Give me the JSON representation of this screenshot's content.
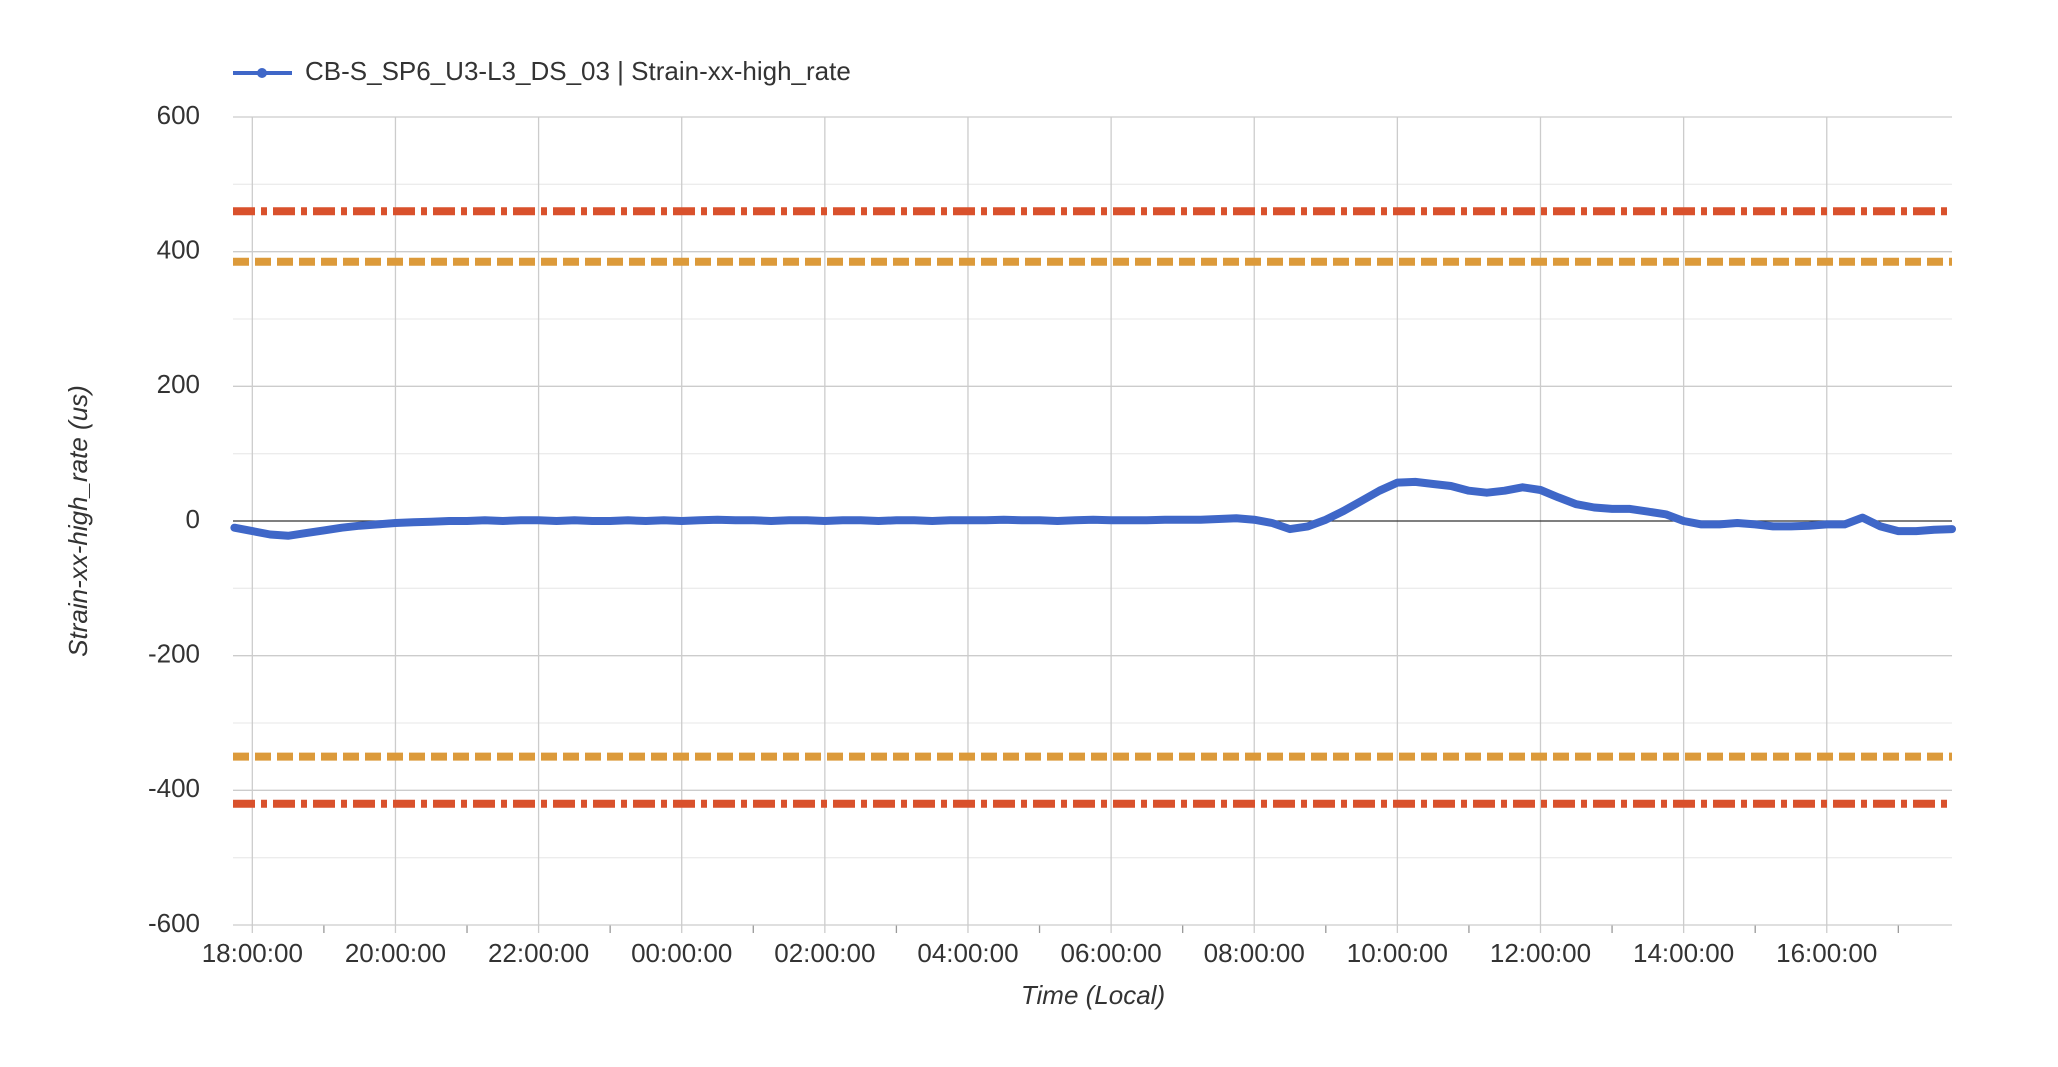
{
  "chart_data": {
    "type": "line",
    "xlabel": "Time (Local)",
    "ylabel": "Strain-xx-high_rate (us)",
    "series": [
      {
        "name": "CB-S_SP6_U3-L3_DS_03 | Strain-xx-high_rate",
        "color": "#3f67c8",
        "x": [
          17.75,
          18,
          18.25,
          18.5,
          18.75,
          19,
          19.25,
          19.5,
          19.75,
          20,
          20.25,
          20.5,
          20.75,
          21,
          21.25,
          21.5,
          21.75,
          22,
          22.25,
          22.5,
          22.75,
          23,
          23.25,
          23.5,
          23.75,
          24,
          24.25,
          24.5,
          24.75,
          25,
          25.25,
          25.5,
          25.75,
          26,
          26.25,
          26.5,
          26.75,
          27,
          27.25,
          27.5,
          27.75,
          28,
          28.25,
          28.5,
          28.75,
          29,
          29.25,
          29.5,
          29.75,
          30,
          30.25,
          30.5,
          30.75,
          31,
          31.25,
          31.5,
          31.75,
          32,
          32.25,
          32.5,
          32.75,
          33,
          33.25,
          33.5,
          33.75,
          34,
          34.25,
          34.5,
          34.75,
          35,
          35.25,
          35.5,
          35.75,
          36,
          36.25,
          36.5,
          36.75,
          37,
          37.25,
          37.5,
          37.75,
          38,
          38.25,
          38.5,
          38.75,
          39,
          39.25,
          39.5,
          39.75,
          40,
          40.25,
          40.5,
          40.75,
          41,
          41.25,
          41.5,
          41.75
        ],
        "values": [
          -10,
          -15,
          -20,
          -22,
          -18,
          -14,
          -10,
          -7,
          -5,
          -3,
          -2,
          -1,
          0,
          0,
          1,
          0,
          1,
          1,
          0,
          1,
          0,
          0,
          1,
          0,
          1,
          0,
          1,
          2,
          1,
          1,
          0,
          1,
          1,
          0,
          1,
          1,
          0,
          1,
          1,
          0,
          1,
          1,
          1,
          2,
          1,
          1,
          0,
          1,
          2,
          1,
          1,
          1,
          2,
          2,
          2,
          3,
          4,
          2,
          -3,
          -12,
          -8,
          2,
          15,
          30,
          45,
          57,
          58,
          55,
          52,
          45,
          42,
          45,
          50,
          46,
          35,
          25,
          20,
          18,
          18,
          14,
          10,
          0,
          -5,
          -5,
          -3,
          -5,
          -8,
          -8,
          -7,
          -5,
          -5,
          5,
          -8,
          -15,
          -15,
          -13,
          -12
        ]
      }
    ],
    "thresholds": [
      {
        "value": 460,
        "color": "#d9512c",
        "dash": "dashdot"
      },
      {
        "value": 385,
        "color": "#dc9a3a",
        "dash": "dashed"
      },
      {
        "value": -350,
        "color": "#dc9a3a",
        "dash": "dashed"
      },
      {
        "value": -420,
        "color": "#d9512c",
        "dash": "dashdot"
      }
    ],
    "xlim": [
      17.73,
      41.75
    ],
    "xticks": [
      {
        "value": 18,
        "label": "18:00:00"
      },
      {
        "value": 20,
        "label": "20:00:00"
      },
      {
        "value": 22,
        "label": "22:00:00"
      },
      {
        "value": 24,
        "label": "00:00:00"
      },
      {
        "value": 26,
        "label": "02:00:00"
      },
      {
        "value": 28,
        "label": "04:00:00"
      },
      {
        "value": 30,
        "label": "06:00:00"
      },
      {
        "value": 32,
        "label": "08:00:00"
      },
      {
        "value": 34,
        "label": "10:00:00"
      },
      {
        "value": 36,
        "label": "12:00:00"
      },
      {
        "value": 38,
        "label": "14:00:00"
      },
      {
        "value": 40,
        "label": "16:00:00"
      }
    ],
    "xminorticks": [
      19,
      21,
      23,
      25,
      27,
      29,
      31,
      33,
      35,
      37,
      39,
      41
    ],
    "ylim": [
      -600,
      600
    ],
    "yticks": [
      -600,
      -400,
      -200,
      0,
      200,
      400,
      600
    ],
    "yminorticks": [
      -500,
      -300,
      -100,
      100,
      300,
      500
    ],
    "grid": true,
    "legend": "top-left"
  }
}
